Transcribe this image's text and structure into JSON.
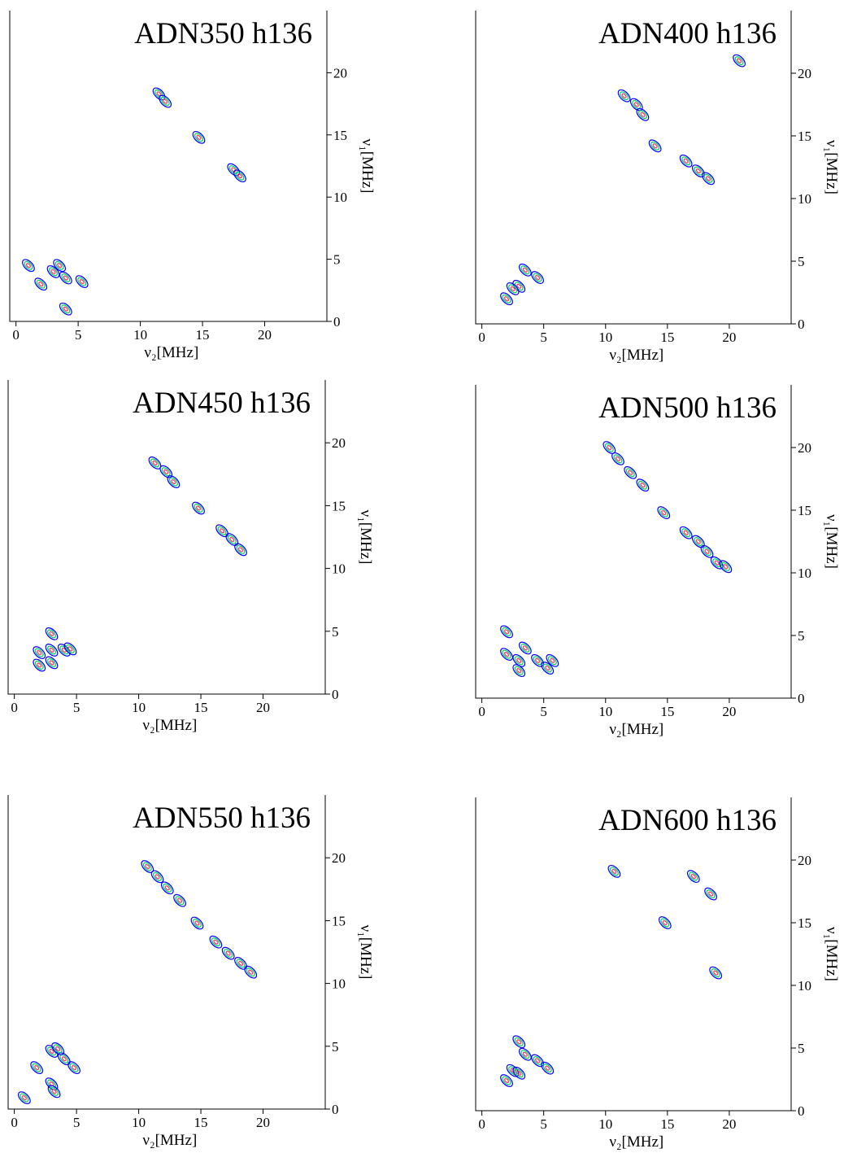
{
  "chart_data": [
    {
      "type": "contour",
      "title": "ADN350 h136",
      "x_label": "ν₂[MHz]",
      "y_label": "ν₁[MHz]",
      "xlim": [
        -0.5,
        25
      ],
      "ylim": [
        0,
        25
      ],
      "xticks": [
        0,
        5,
        10,
        15,
        20
      ],
      "yticks": [
        0,
        5,
        10,
        15,
        20
      ],
      "colors": [
        "#0000ff",
        "#00cc66",
        "#ff3366"
      ],
      "x": [
        14.7,
        11.5,
        12,
        17.5,
        18,
        3,
        4,
        2,
        3.5,
        1,
        4,
        5.3
      ],
      "values": [
        14.8,
        18.3,
        17.7,
        12.2,
        11.7,
        4,
        3.5,
        3,
        4.5,
        4.5,
        1,
        3.2
      ]
    },
    {
      "type": "contour",
      "title": "ADN400 h136",
      "x_label": "ν₂[MHz]",
      "y_label": "ν₁[MHz]",
      "xlim": [
        -0.5,
        25
      ],
      "ylim": [
        0,
        25
      ],
      "xticks": [
        0,
        5,
        10,
        15,
        20
      ],
      "yticks": [
        0,
        5,
        10,
        15,
        20
      ],
      "colors": [
        "#0000ff",
        "#00cc66",
        "#ff3366"
      ],
      "x": [
        11.5,
        12.5,
        13,
        14,
        16.5,
        17.5,
        18.3,
        20.8,
        3.5,
        4.5,
        3,
        2,
        2.5
      ],
      "values": [
        18.2,
        17.5,
        16.7,
        14.2,
        13,
        12.2,
        11.6,
        21,
        4.3,
        3.7,
        3,
        2,
        2.8
      ]
    },
    {
      "type": "contour",
      "title": "ADN450 h136",
      "x_label": "ν₂[MHz]",
      "y_label": "ν₁[MHz]",
      "xlim": [
        -0.5,
        25
      ],
      "ylim": [
        0,
        25
      ],
      "xticks": [
        0,
        5,
        10,
        15,
        20
      ],
      "yticks": [
        0,
        5,
        10,
        15,
        20
      ],
      "colors": [
        "#0000ff",
        "#00cc66",
        "#ff3366"
      ],
      "x": [
        11.3,
        12.2,
        12.8,
        14.8,
        16.7,
        17.5,
        18.2,
        3,
        4,
        4.5,
        2,
        2,
        3,
        3
      ],
      "values": [
        18.4,
        17.7,
        16.9,
        14.8,
        13,
        12.3,
        11.5,
        4.8,
        3.5,
        3.6,
        3.3,
        2.3,
        2.5,
        3.5
      ]
    },
    {
      "type": "contour",
      "title": "ADN500 h136",
      "x_label": "ν₂[MHz]",
      "y_label": "ν₁[MHz]",
      "xlim": [
        -0.5,
        25
      ],
      "ylim": [
        0,
        25
      ],
      "xticks": [
        0,
        5,
        10,
        15,
        20
      ],
      "yticks": [
        0,
        5,
        10,
        15,
        20
      ],
      "colors": [
        "#0000ff",
        "#00cc66",
        "#ff3366"
      ],
      "x": [
        10.3,
        11,
        12,
        13,
        14.7,
        16.5,
        17.5,
        18.2,
        19,
        19.7,
        2,
        3,
        3.5,
        4.5,
        5.3,
        2,
        3,
        5.7
      ],
      "values": [
        20,
        19.1,
        18,
        17,
        14.8,
        13.2,
        12.5,
        11.7,
        10.8,
        10.5,
        5.3,
        3,
        4,
        3,
        2.4,
        3.5,
        2.2,
        3
      ]
    },
    {
      "type": "contour",
      "title": "ADN550 h136",
      "x_label": "ν₂[MHz]",
      "y_label": "ν₁[MHz]",
      "xlim": [
        -0.5,
        25
      ],
      "ylim": [
        0,
        25
      ],
      "xticks": [
        0,
        5,
        10,
        15,
        20
      ],
      "yticks": [
        0,
        5,
        10,
        15,
        20
      ],
      "colors": [
        "#0000ff",
        "#00cc66",
        "#ff3366"
      ],
      "x": [
        10.7,
        11.5,
        12.3,
        13.3,
        14.7,
        16.2,
        17.2,
        18.2,
        19,
        0.8,
        3,
        4,
        4.8,
        3.5,
        1.8,
        3,
        3.2
      ],
      "values": [
        19.3,
        18.5,
        17.6,
        16.6,
        14.8,
        13.3,
        12.4,
        11.6,
        10.9,
        0.9,
        4.6,
        4,
        3.3,
        4.8,
        3.3,
        2,
        1.4
      ]
    },
    {
      "type": "contour",
      "title": "ADN600 h136",
      "x_label": "ν₂[MHz]",
      "y_label": "ν₁[MHz]",
      "xlim": [
        -0.5,
        25
      ],
      "ylim": [
        0,
        25
      ],
      "xticks": [
        0,
        5,
        10,
        15,
        20
      ],
      "yticks": [
        0,
        5,
        10,
        15,
        20
      ],
      "colors": [
        "#0000ff",
        "#00cc66",
        "#ff3366"
      ],
      "x": [
        10.7,
        17.1,
        18.5,
        14.8,
        18.9,
        3,
        3.5,
        4.5,
        5.3,
        2.5,
        2,
        3
      ],
      "values": [
        19.1,
        18.7,
        17.3,
        15,
        11.0,
        5.5,
        4.5,
        4,
        3.4,
        3.2,
        2.4,
        3
      ]
    }
  ]
}
